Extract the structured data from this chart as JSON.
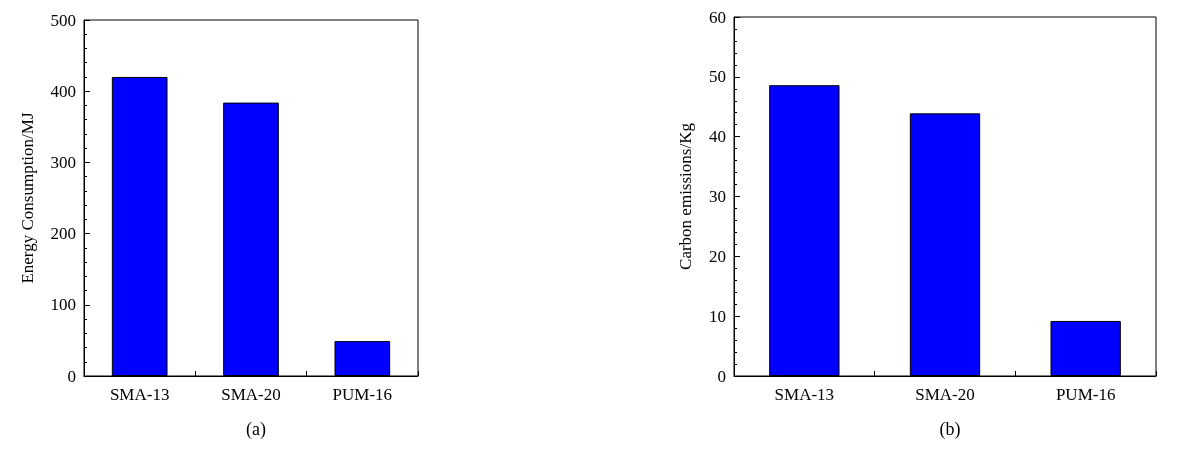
{
  "chart_data": [
    {
      "type": "bar",
      "categories": [
        "SMA-13",
        "SMA-20",
        "PUM-16"
      ],
      "values": [
        420,
        384,
        49
      ],
      "color": "#0000ff",
      "ylabel": "Energy Consumption/MJ",
      "ylim": [
        0,
        500
      ],
      "yticks": [
        0,
        100,
        200,
        300,
        400,
        500
      ],
      "grid": false,
      "annotations": [
        "(a)"
      ]
    },
    {
      "type": "bar",
      "categories": [
        "SMA-13",
        "SMA-20",
        "PUM-16"
      ],
      "values": [
        48.6,
        43.9,
        9.2
      ],
      "color": "#0000ff",
      "ylabel": "Carbon emissions/Kg",
      "ylim": [
        0,
        60
      ],
      "yticks": [
        0,
        10,
        20,
        30,
        40,
        50,
        60
      ],
      "grid": false,
      "annotations": [
        "(b)"
      ]
    }
  ]
}
